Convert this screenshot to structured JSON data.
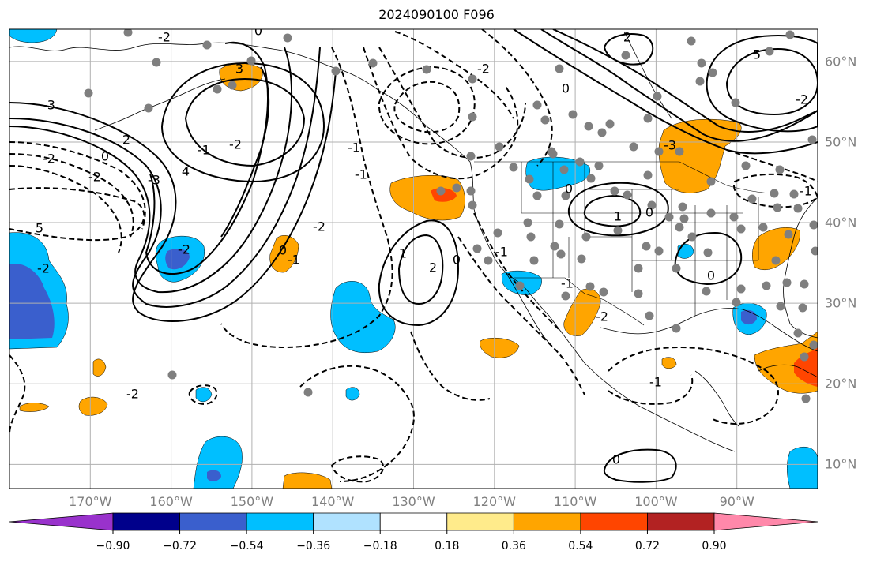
{
  "title": "2024090100 F096",
  "map": {
    "lon_range": [
      -180,
      -80
    ],
    "lat_range": [
      7,
      64
    ],
    "lon_ticks": [
      "170°W",
      "160°W",
      "150°W",
      "140°W",
      "130°W",
      "120°W",
      "110°W",
      "100°W",
      "90°W"
    ],
    "lat_ticks": [
      "60°N",
      "50°N",
      "40°N",
      "30°N",
      "20°N",
      "10°N"
    ],
    "grid": true,
    "contour_labels": [
      "-2",
      "0",
      "-3",
      "-2",
      "0",
      "3",
      "2",
      "-2",
      "-1",
      "-2",
      "4",
      "5",
      "-2",
      "-3",
      "-2",
      "-1",
      "-1",
      "-2",
      "0",
      "-1",
      "-2",
      "1",
      "2",
      "0",
      "-1",
      "0",
      "1",
      "-2",
      "0",
      "-1",
      "-2",
      "2",
      "-3",
      "5",
      "-2",
      "-1",
      "0",
      "0",
      "0",
      "-1"
    ]
  },
  "colorbar": {
    "tick_labels": [
      "−0.90",
      "−0.72",
      "−0.54",
      "−0.36",
      "−0.18",
      "0.18",
      "0.36",
      "0.54",
      "0.72",
      "0.90"
    ],
    "colors": [
      "#9932cc",
      "#00008b",
      "#3a5fcd",
      "#00bfff",
      "#b0e2ff",
      "#ffffff",
      "#ffeb8b",
      "#ffa500",
      "#ff4500",
      "#b22222",
      "#ff88aa"
    ]
  },
  "fill_colors": {
    "neg_weak": "#00bfff",
    "neg_strong": "#3a5fcd",
    "pos_weak": "#ffa500",
    "pos_strong": "#ff4500"
  }
}
